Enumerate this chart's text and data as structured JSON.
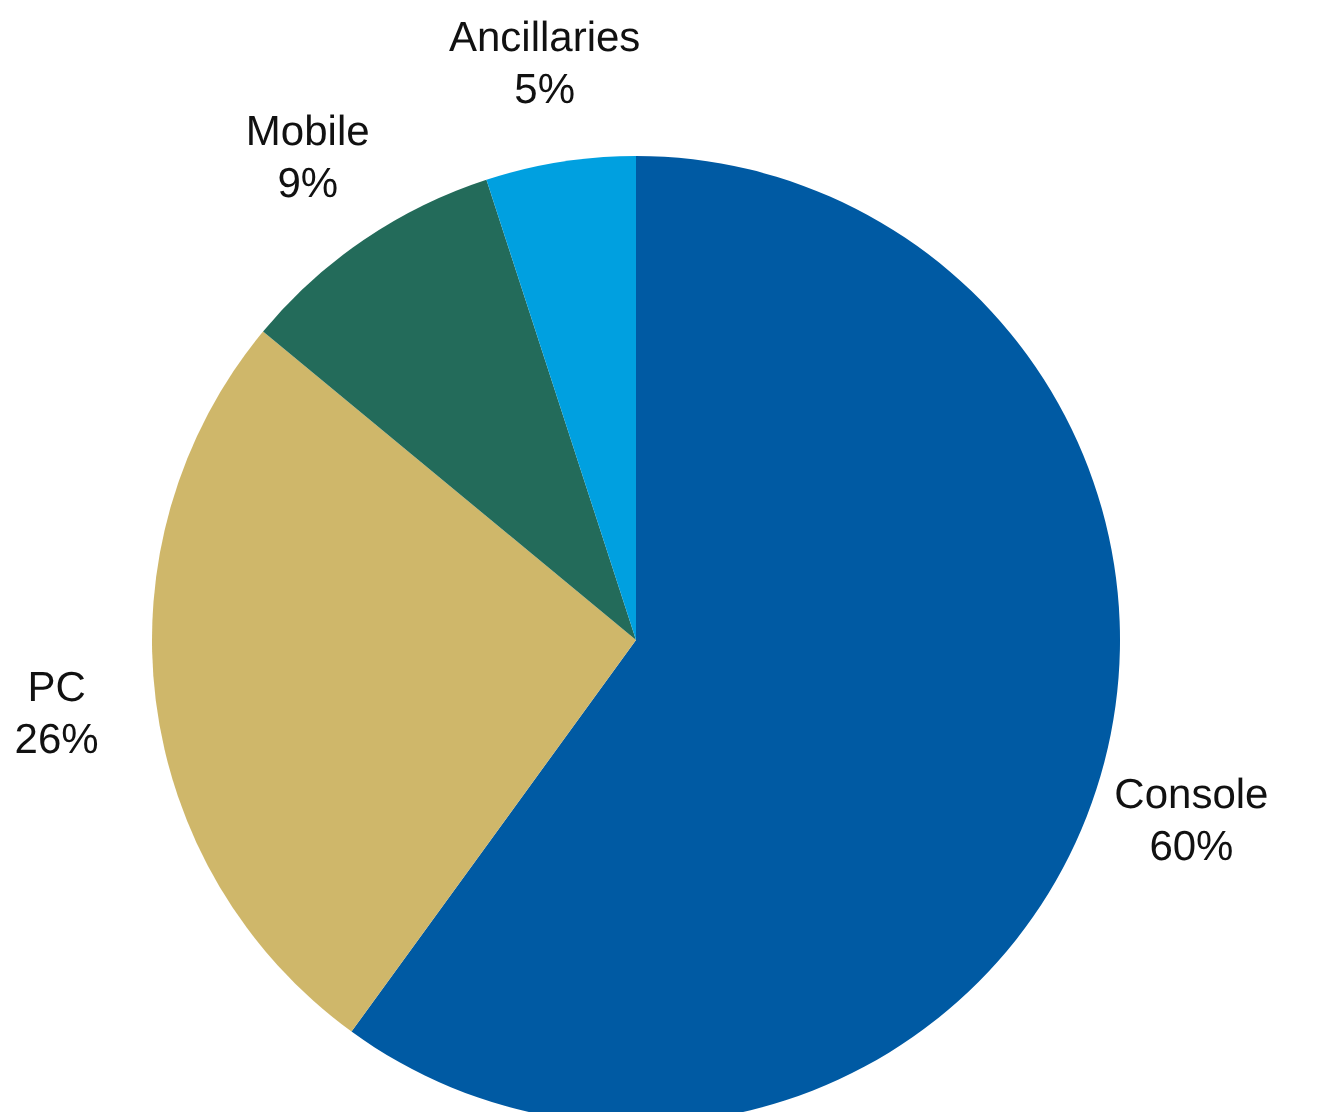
{
  "chart_data": {
    "type": "pie",
    "categories": [
      "Console",
      "PC",
      "Mobile",
      "Ancillaries"
    ],
    "values": [
      60,
      26,
      9,
      5
    ],
    "colors": [
      "#005aa3",
      "#cfb76a",
      "#236b5a",
      "#00a0e0"
    ],
    "value_labels": [
      "60%",
      "26%",
      "9%",
      "5%"
    ]
  }
}
